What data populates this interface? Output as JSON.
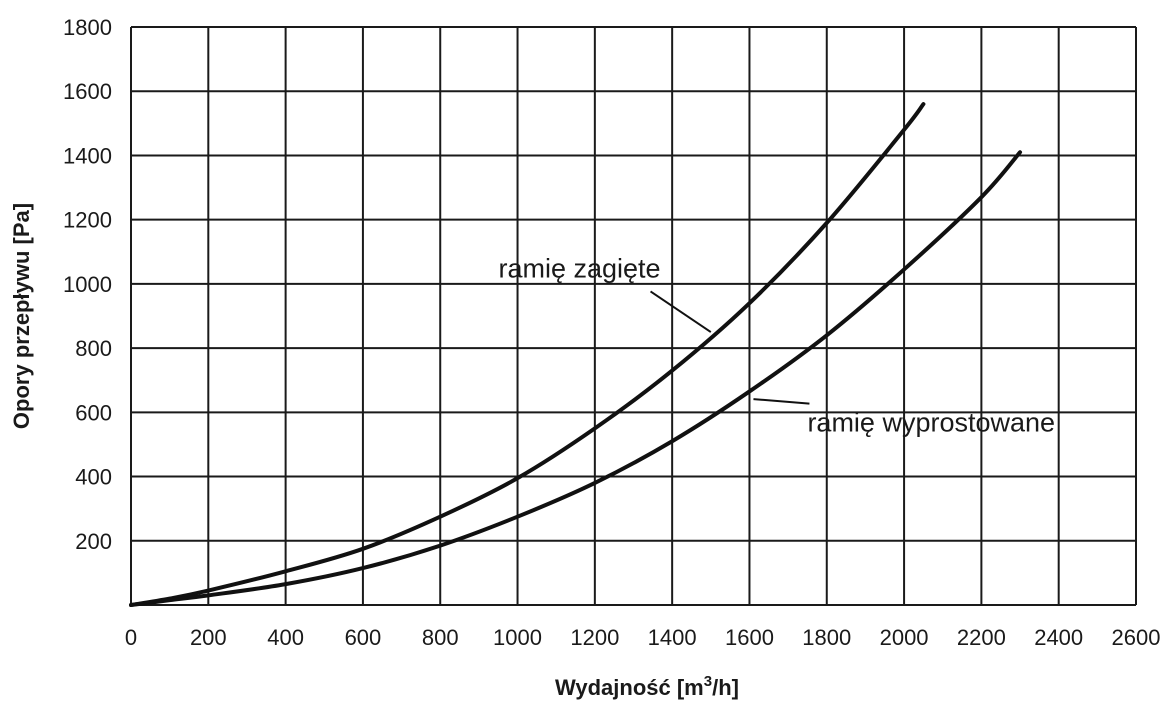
{
  "chart_data": {
    "type": "line",
    "title": "",
    "xlabel": "Wydajność [m",
    "xlabel_sup": "3",
    "xlabel_suffix": "/h]",
    "ylabel": "Opory przepływu [Pa]",
    "xlim": [
      0,
      2600
    ],
    "ylim": [
      0,
      1800
    ],
    "xticks": [
      0,
      200,
      400,
      600,
      800,
      1000,
      1200,
      1400,
      1600,
      1800,
      2000,
      2200,
      2400,
      2600
    ],
    "yticks": [
      200,
      400,
      600,
      800,
      1000,
      1200,
      1400,
      1600,
      1800
    ],
    "grid": true,
    "series": [
      {
        "name": "ramię zagięte",
        "x": [
          0,
          100,
          200,
          400,
          600,
          800,
          1000,
          1200,
          1400,
          1600,
          1800,
          2000,
          2050
        ],
        "y": [
          0,
          20,
          45,
          105,
          175,
          275,
          395,
          550,
          730,
          940,
          1190,
          1480,
          1560
        ],
        "color": "#111111"
      },
      {
        "name": "ramię  wyprostowane",
        "x": [
          0,
          100,
          200,
          400,
          600,
          800,
          1000,
          1200,
          1400,
          1600,
          1800,
          2000,
          2200,
          2300
        ],
        "y": [
          0,
          15,
          30,
          65,
          115,
          185,
          275,
          380,
          510,
          665,
          840,
          1045,
          1270,
          1410
        ],
        "color": "#111111"
      }
    ],
    "annotations": [
      {
        "text": "ramię zagięte",
        "series": 0,
        "x_anchor": 1500,
        "y_anchor": 850,
        "x_text_end": 1370,
        "y_text_base": 1020
      },
      {
        "text": "ramię  wyprostowane",
        "series": 1,
        "x_anchor": 1600,
        "y_anchor": 660,
        "x_text_end": 1750,
        "y_text_base": 540
      }
    ]
  }
}
